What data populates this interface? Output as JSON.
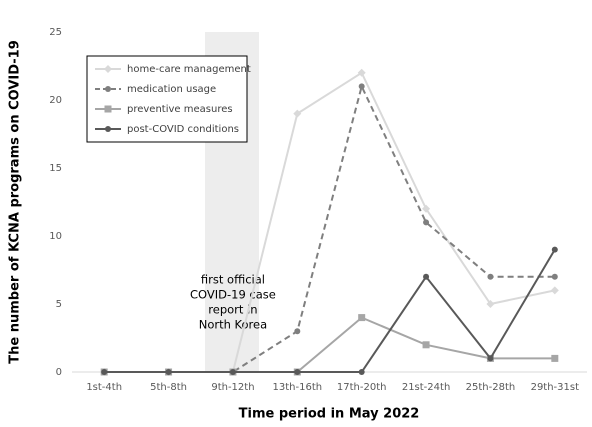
{
  "chart_data": {
    "type": "line",
    "x_label": "Time period in May 2022",
    "y_label": "The number of KCNA programs on COVID-19",
    "categories": [
      "1st-4th",
      "5th-8th",
      "9th-12th",
      "13th-16th",
      "17th-20th",
      "21st-24th",
      "25th-28th",
      "29th-31st"
    ],
    "series": [
      {
        "name": "home-care management",
        "color": "#d9d9d9",
        "marker": "diamond",
        "linestyle": "solid",
        "values": [
          0,
          0,
          0,
          19,
          22,
          12,
          5,
          6
        ]
      },
      {
        "name": "medication usage",
        "color": "#7f7f7f",
        "marker": "circle",
        "linestyle": "dashed",
        "values": [
          0,
          0,
          0,
          3,
          21,
          11,
          7,
          7
        ]
      },
      {
        "name": "preventive measures",
        "color": "#a6a6a6",
        "marker": "square",
        "linestyle": "solid",
        "values": [
          0,
          0,
          0,
          0,
          4,
          2,
          1,
          1
        ]
      },
      {
        "name": "post-COVID conditions",
        "color": "#595959",
        "marker": "circle",
        "linestyle": "solid",
        "values": [
          0,
          0,
          0,
          0,
          0,
          7,
          1,
          9
        ]
      }
    ],
    "annotation": [
      "first official",
      "COVID-19 case",
      "report in",
      "North Korea"
    ],
    "ylim": [
      0,
      25
    ],
    "yticks": [
      0,
      5,
      10,
      15,
      20,
      25
    ],
    "grid": false,
    "legend": "upper left"
  }
}
